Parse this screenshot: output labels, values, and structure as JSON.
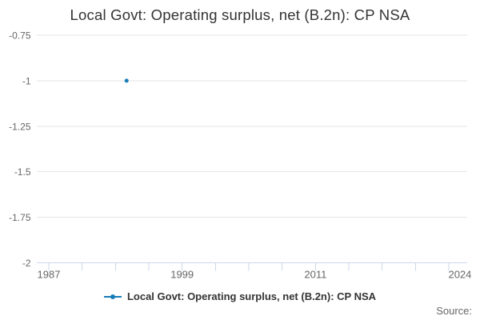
{
  "chart": {
    "title": "Local Govt: Operating surplus, net (B.2n): CP NSA",
    "legend": {
      "label": "Local Govt: Operating surplus, net (B.2n): CP NSA"
    },
    "source_label": "Source:",
    "colors": {
      "series": "#177cb9",
      "grid": "#e6e6e6",
      "axis_line": "#ccd6eb",
      "axis_label": "#666666",
      "title": "#333333"
    }
  },
  "chart_data": {
    "type": "line",
    "title": "Local Govt: Operating surplus, net (B.2n): CP NSA",
    "series": [
      {
        "name": "Local Govt: Operating surplus, net (B.2n): CP NSA",
        "points": [
          {
            "x": 1994,
            "y": -1
          }
        ]
      }
    ],
    "x_axis": {
      "min": 1985.9,
      "max": 2024.8,
      "tick_start": 1987,
      "tick_end": 2023,
      "tick_interval": 3,
      "labeled_ticks": [
        {
          "year": 1987,
          "label": "1987"
        },
        {
          "year": 1999,
          "label": "1999"
        },
        {
          "year": 2011,
          "label": "2011"
        },
        {
          "year": 2024,
          "label": "2024"
        }
      ]
    },
    "y_axis": {
      "min": -2,
      "max": -0.75,
      "tick_interval": 0.25,
      "ticks": [
        {
          "value": -0.75,
          "label": "-0.75"
        },
        {
          "value": -1,
          "label": "-1"
        },
        {
          "value": -1.25,
          "label": "-1.25"
        },
        {
          "value": -1.5,
          "label": "-1.5"
        },
        {
          "value": -1.75,
          "label": "-1.75"
        },
        {
          "value": -2,
          "label": "-2"
        }
      ]
    },
    "grid": true,
    "legend_position": "bottom"
  }
}
